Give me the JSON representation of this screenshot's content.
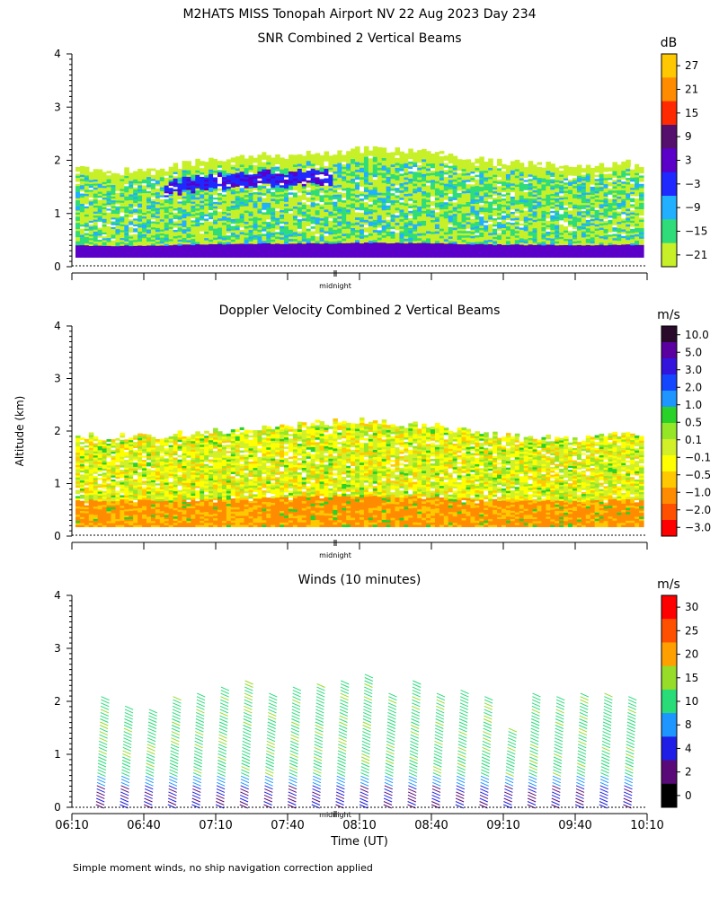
{
  "header": {
    "title": "M2HATS MISS Tonopah Airport NV  22 Aug 2023 Day 234"
  },
  "footnote": "Simple moment winds, no ship navigation correction applied",
  "shared_axes": {
    "ylabel": "Altitude (km)",
    "xlabel": "Time (UT)",
    "x_tick_labels": [
      "06:10",
      "06:40",
      "07:10",
      "07:40",
      "08:10",
      "08:40",
      "09:10",
      "09:40",
      "10:10"
    ],
    "midnight_label": "midnight",
    "y_tick_labels": [
      "0",
      "1",
      "2",
      "3",
      "4"
    ]
  },
  "chart_data": [
    {
      "type": "heatmap",
      "title": "SNR Combined 2 Vertical Beams",
      "xlabel": "Time (UT)",
      "ylabel": "Altitude (km)",
      "xlim": [
        "06:10",
        "10:10"
      ],
      "ylim": [
        0,
        4
      ],
      "colorbar": {
        "unit": "dB",
        "labels": [
          "27",
          "21",
          "15",
          "9",
          "3",
          "−3",
          "−9",
          "−15",
          "−21"
        ],
        "colors": [
          "#ffc800",
          "#ff8c00",
          "#ff2a00",
          "#55106e",
          "#5a00c8",
          "#1e28ff",
          "#20b0ff",
          "#2edc7a",
          "#c8f028"
        ]
      },
      "layers": [
        {
          "name": "bottom",
          "values": [
            0.18,
            0.18,
            0.18,
            0.18,
            0.18,
            0.18,
            0.18,
            0.18,
            0.18
          ]
        },
        {
          "name": "top",
          "values": [
            1.85,
            1.8,
            2.05,
            2.1,
            2.2,
            2.15,
            1.95,
            1.9,
            1.95
          ]
        }
      ]
    },
    {
      "type": "heatmap",
      "title": "Doppler Velocity Combined 2 Vertical Beams",
      "xlabel": "Time (UT)",
      "ylabel": "Altitude (km)",
      "xlim": [
        "06:10",
        "10:10"
      ],
      "ylim": [
        0,
        4
      ],
      "colorbar": {
        "unit": "m/s",
        "labels": [
          "10.0",
          "5.0",
          "3.0",
          "2.0",
          "1.0",
          "0.5",
          "0.1",
          "−0.1",
          "−0.5",
          "−1.0",
          "−2.0",
          "−3.0"
        ],
        "colors": [
          "#2a0a2a",
          "#5a00a0",
          "#3214dc",
          "#1446ff",
          "#1e96ff",
          "#28d228",
          "#96e628",
          "#d2f028",
          "#ffff00",
          "#ffc800",
          "#ff8c00",
          "#ff5000",
          "#ff0000"
        ]
      },
      "layers": [
        {
          "name": "bottom",
          "values": [
            0.18,
            0.18,
            0.18,
            0.18,
            0.18,
            0.18,
            0.18,
            0.18,
            0.18
          ]
        },
        {
          "name": "top",
          "values": [
            1.9,
            1.9,
            2.0,
            2.1,
            2.2,
            2.1,
            1.9,
            1.85,
            1.95
          ]
        }
      ]
    },
    {
      "type": "scatter",
      "title": "Winds (10 minutes)",
      "xlabel": "Time (UT)",
      "ylabel": "Altitude (km)",
      "xlim": [
        "06:10",
        "10:10"
      ],
      "ylim": [
        0,
        4
      ],
      "colorbar": {
        "unit": "m/s",
        "labels": [
          "30",
          "25",
          "20",
          "15",
          "10",
          "8",
          "4",
          "2",
          "0"
        ],
        "colors": [
          "#ff0000",
          "#ff5000",
          "#ffa000",
          "#96dc28",
          "#28dc78",
          "#1e96ff",
          "#1e1ee6",
          "#5a0a78",
          "#000000"
        ]
      },
      "profiles": [
        {
          "time": "06:20",
          "top_km": 2.1
        },
        {
          "time": "06:30",
          "top_km": 1.95
        },
        {
          "time": "06:40",
          "top_km": 1.9
        },
        {
          "time": "06:50",
          "top_km": 2.1
        },
        {
          "time": "07:00",
          "top_km": 2.2
        },
        {
          "time": "07:10",
          "top_km": 2.3
        },
        {
          "time": "07:20",
          "top_km": 2.4
        },
        {
          "time": "07:30",
          "top_km": 2.15
        },
        {
          "time": "07:40",
          "top_km": 2.3
        },
        {
          "time": "07:50",
          "top_km": 2.35
        },
        {
          "time": "08:00",
          "top_km": 2.4
        },
        {
          "time": "08:10",
          "top_km": 2.55
        },
        {
          "time": "08:20",
          "top_km": 2.2
        },
        {
          "time": "08:30",
          "top_km": 2.4
        },
        {
          "time": "08:40",
          "top_km": 2.15
        },
        {
          "time": "08:50",
          "top_km": 2.25
        },
        {
          "time": "09:00",
          "top_km": 2.1
        },
        {
          "time": "09:10",
          "top_km": 1.5
        },
        {
          "time": "09:20",
          "top_km": 2.2
        },
        {
          "time": "09:30",
          "top_km": 2.1
        },
        {
          "time": "09:40",
          "top_km": 2.2
        },
        {
          "time": "09:50",
          "top_km": 2.2
        },
        {
          "time": "10:00",
          "top_km": 2.1
        }
      ]
    }
  ]
}
